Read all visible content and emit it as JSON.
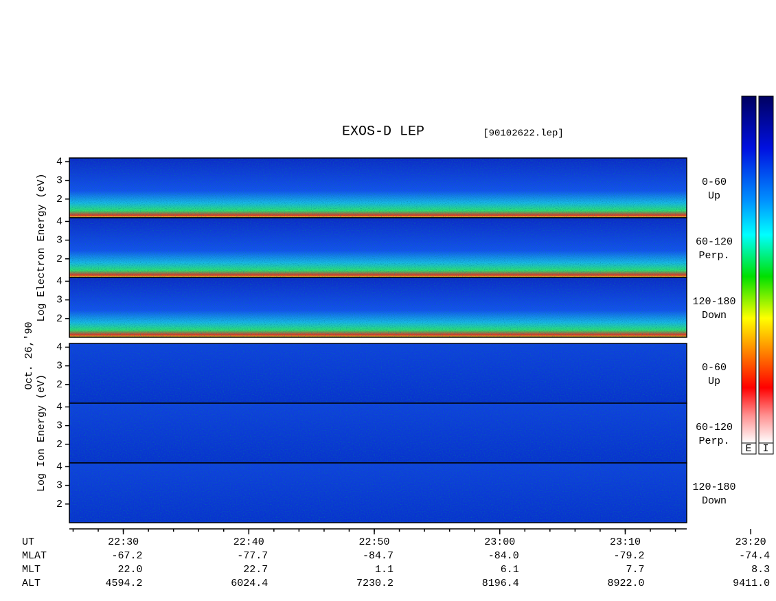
{
  "title": "EXOS-D LEP",
  "file": "[90102622.lep]",
  "date": "Oct. 26,'90",
  "panels": [
    {
      "label": "Log Electron Energy (eV)",
      "ylim": [
        1,
        4.2
      ],
      "yticks": [
        2,
        3,
        4
      ],
      "subpanels": [
        {
          "pitch": "0-60",
          "direction": "Up"
        },
        {
          "pitch": "60-120",
          "direction": "Perp."
        },
        {
          "pitch": "120-180",
          "direction": "Down"
        }
      ]
    },
    {
      "label": "Log Ion Energy (eV)",
      "ylim": [
        1,
        4.2
      ],
      "yticks": [
        2,
        3,
        4
      ],
      "subpanels": [
        {
          "pitch": "0-60",
          "direction": "Up"
        },
        {
          "pitch": "60-120",
          "direction": "Perp."
        },
        {
          "pitch": "120-180",
          "direction": "Down"
        }
      ]
    }
  ],
  "time_axis": {
    "label": "UT",
    "xlim": [
      1345.7,
      1394.9
    ],
    "xticks": [
      {
        "value": 1350,
        "label": "22:30"
      },
      {
        "value": 1360,
        "label": "22:40"
      },
      {
        "value": 1370,
        "label": "22:50"
      },
      {
        "value": 1380,
        "label": "23:00"
      },
      {
        "value": 1390,
        "label": "23:10"
      },
      {
        "value": 1400,
        "label": "23:20"
      }
    ]
  },
  "rows": [
    {
      "label": "MLAT",
      "values": [
        "-67.2",
        "-77.7",
        "-84.7",
        "-84.0",
        "-79.2",
        "-74.4"
      ]
    },
    {
      "label": "MLT",
      "values": [
        "22.0",
        "22.7",
        "1.1",
        "6.1",
        "7.7",
        "8.3"
      ]
    },
    {
      "label": "ALT",
      "values": [
        "4594.2",
        "6024.4",
        "7230.2",
        "8196.4",
        "8922.0",
        "9411.0"
      ]
    }
  ],
  "colorbar": {
    "labels": [
      "E",
      "I"
    ]
  }
}
